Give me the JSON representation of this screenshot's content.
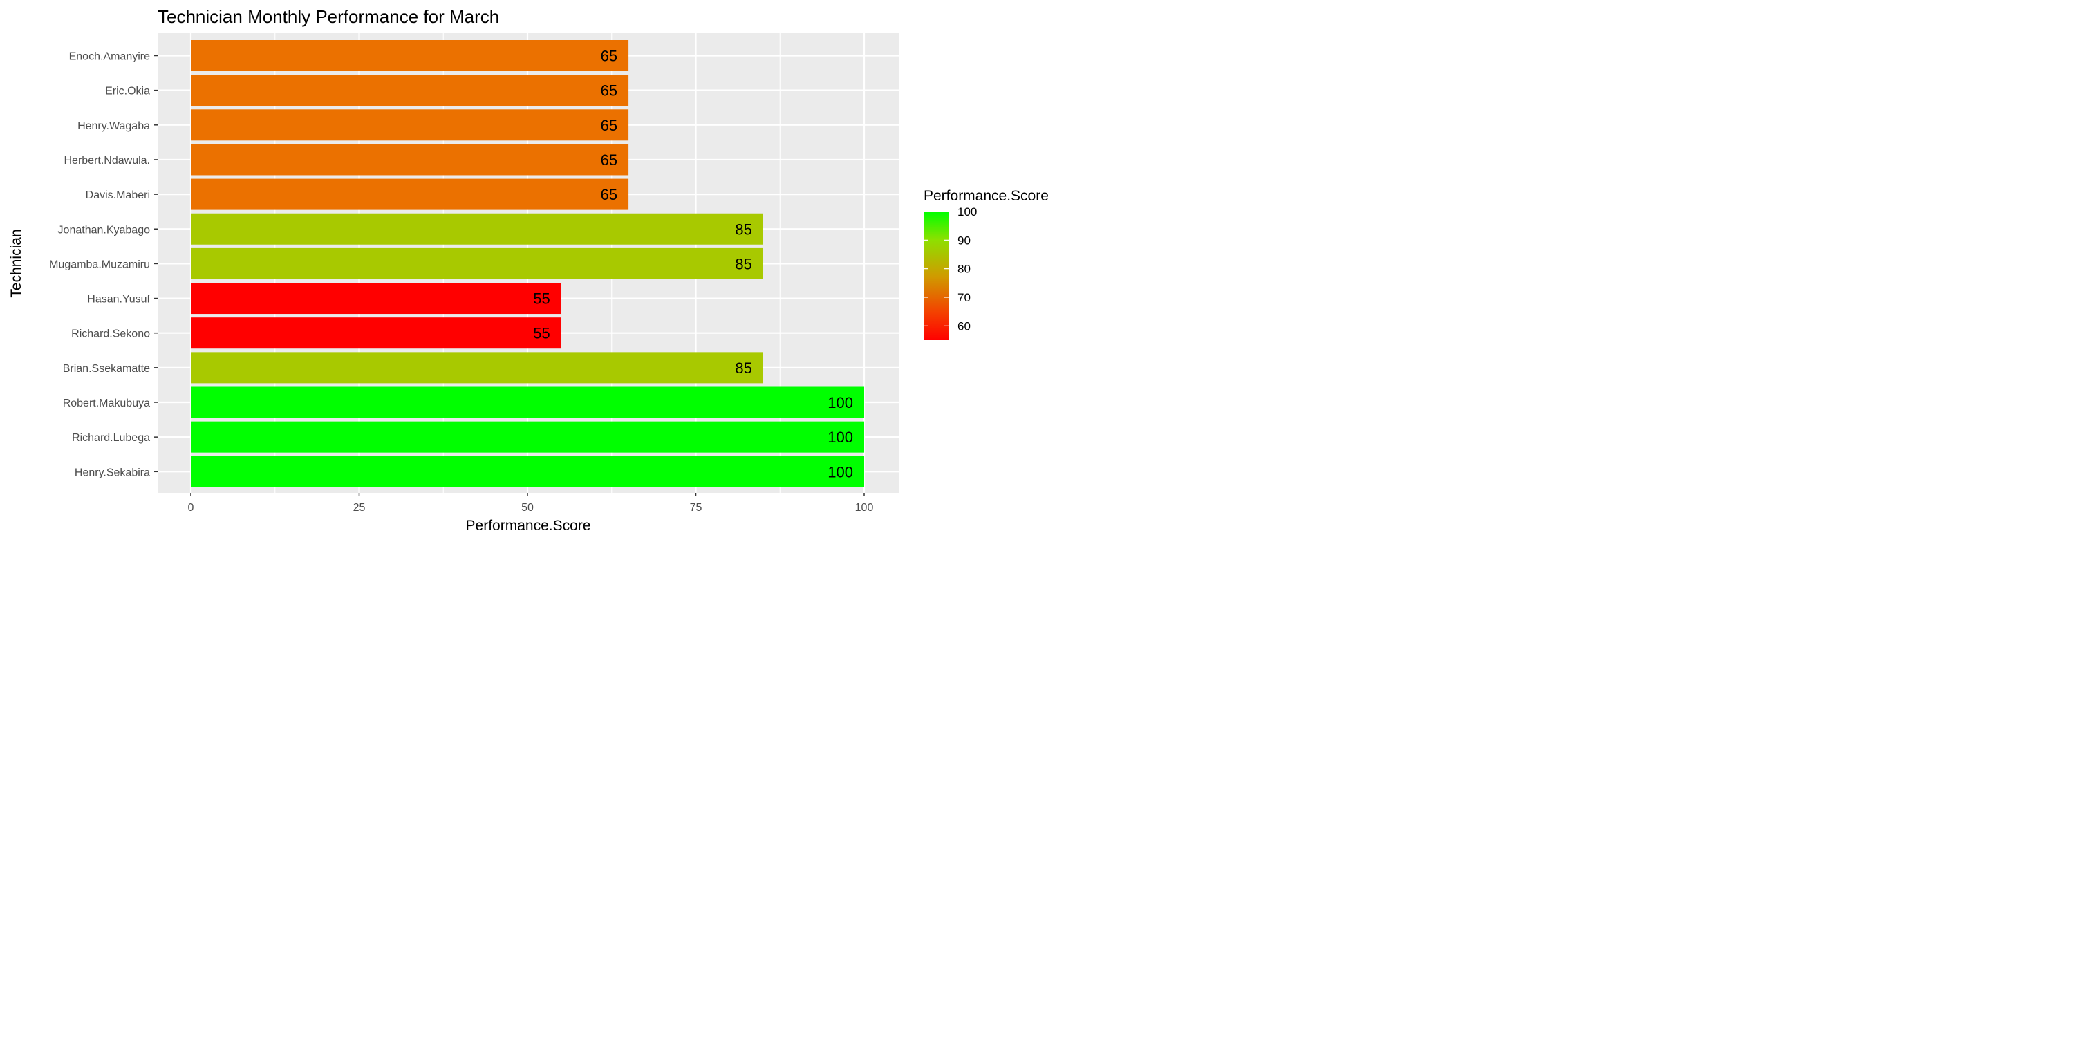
{
  "chart_data": {
    "type": "bar",
    "orientation": "horizontal",
    "title": "Technician Monthly Performance for March",
    "xlabel": "Performance.Score",
    "ylabel": "Technician",
    "categories": [
      "Enoch.Amanyire",
      "Eric.Okia",
      "Henry.Wagaba",
      "Herbert.Ndawula.",
      "Davis.Maberi",
      "Jonathan.Kyabago",
      "Mugamba.Muzamiru",
      "Hasan.Yusuf",
      "Richard.Sekono",
      "Brian.Ssekamatte",
      "Robert.Makubuya",
      "Richard.Lubega",
      "Henry.Sekabira"
    ],
    "values": [
      65,
      65,
      65,
      65,
      65,
      85,
      85,
      55,
      55,
      85,
      100,
      100,
      100
    ],
    "xlim": [
      0,
      100
    ],
    "xticks": [
      0,
      25,
      50,
      75,
      100
    ],
    "grid": true,
    "legend": {
      "title": "Performance.Score",
      "position": "right",
      "ticks": [
        100,
        90,
        80,
        70,
        60
      ],
      "range": [
        55,
        100
      ]
    },
    "colors": {
      "low": "#ff0000",
      "high": "#00ff00",
      "score55": "#ff0000",
      "score65": "#eb7100",
      "score85": "#a8c900",
      "score100": "#00ff00",
      "panel": "#ebebeb",
      "gridline": "#ffffff"
    }
  }
}
